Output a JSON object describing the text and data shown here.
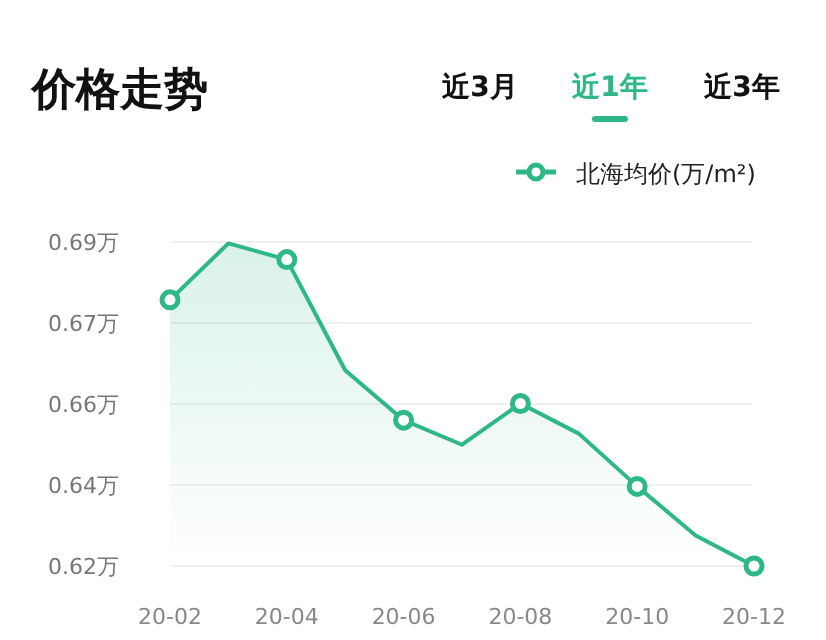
{
  "chart_data": {
    "type": "area",
    "title": "价格走势",
    "annotations": [
      "近3月",
      "近1年",
      "近3年"
    ],
    "categories": [
      "20-02",
      null,
      "20-04",
      null,
      "20-06",
      null,
      "20-08",
      null,
      "20-10",
      null,
      "20-12"
    ],
    "series": [
      {
        "name": "北海均价(万/m²)",
        "color": "#2eb886",
        "values": [
          0.6775,
          0.6897,
          0.6862,
          0.6623,
          0.6515,
          0.6462,
          0.6551,
          0.6486,
          0.6372,
          0.6266,
          0.62
        ]
      }
    ],
    "ylim": [
      0.62,
      0.69
    ],
    "yticks": [
      {
        "value": 0.62,
        "label": "0.62万"
      },
      {
        "value": 0.6375,
        "label": "0.64万"
      },
      {
        "value": 0.655,
        "label": "0.66万"
      },
      {
        "value": 0.6725,
        "label": "0.67万"
      },
      {
        "value": 0.69,
        "label": "0.69万"
      }
    ],
    "grid": "y",
    "legend": "top right",
    "marker": "circle",
    "line_style": "solid"
  }
}
